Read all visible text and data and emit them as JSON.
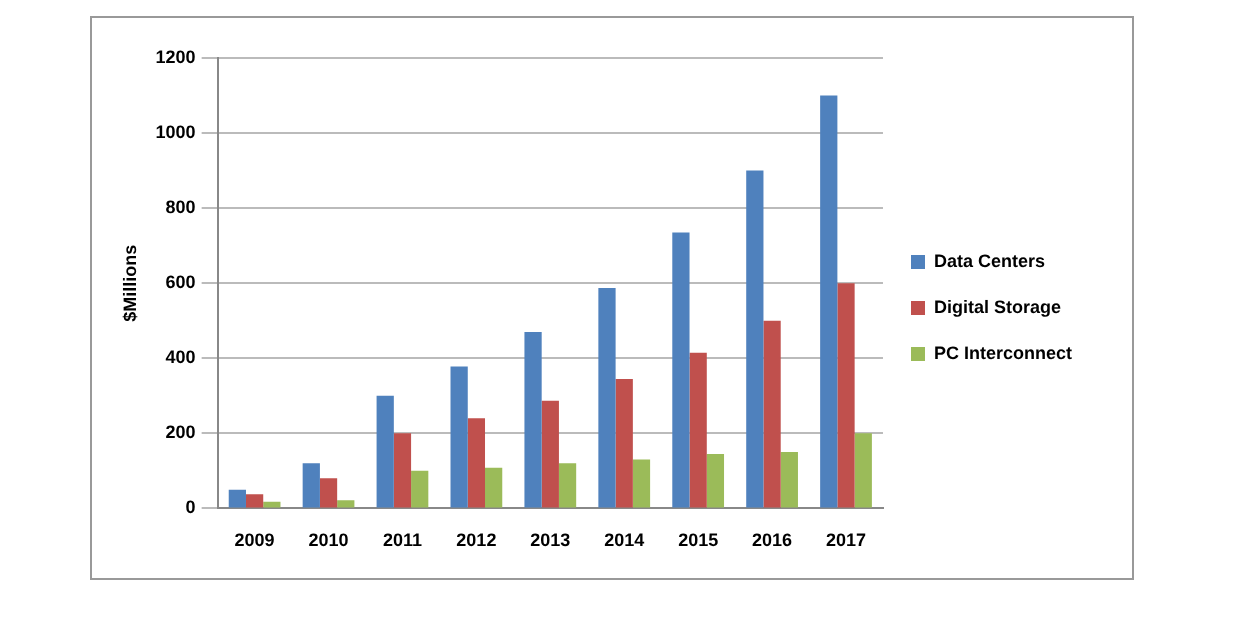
{
  "chart_data": {
    "type": "bar",
    "ylabel": "$Millions",
    "categories": [
      "2009",
      "2010",
      "2011",
      "2012",
      "2013",
      "2014",
      "2015",
      "2016",
      "2017"
    ],
    "series": [
      {
        "name": "Data Centers",
        "color": "#4f81bd",
        "values": [
          50,
          120,
          300,
          378,
          470,
          587,
          735,
          900,
          1100
        ]
      },
      {
        "name": "Digital Storage",
        "color": "#c0504d",
        "values": [
          38,
          80,
          200,
          240,
          287,
          345,
          415,
          500,
          600
        ]
      },
      {
        "name": "PC Interconnect",
        "color": "#9bbb59",
        "values": [
          18,
          22,
          100,
          108,
          120,
          130,
          145,
          150,
          200
        ]
      }
    ],
    "ylim": [
      0,
      1200
    ],
    "yticks": [
      0,
      200,
      400,
      600,
      800,
      1000,
      1200
    ],
    "grid": "y",
    "legend": "right"
  }
}
